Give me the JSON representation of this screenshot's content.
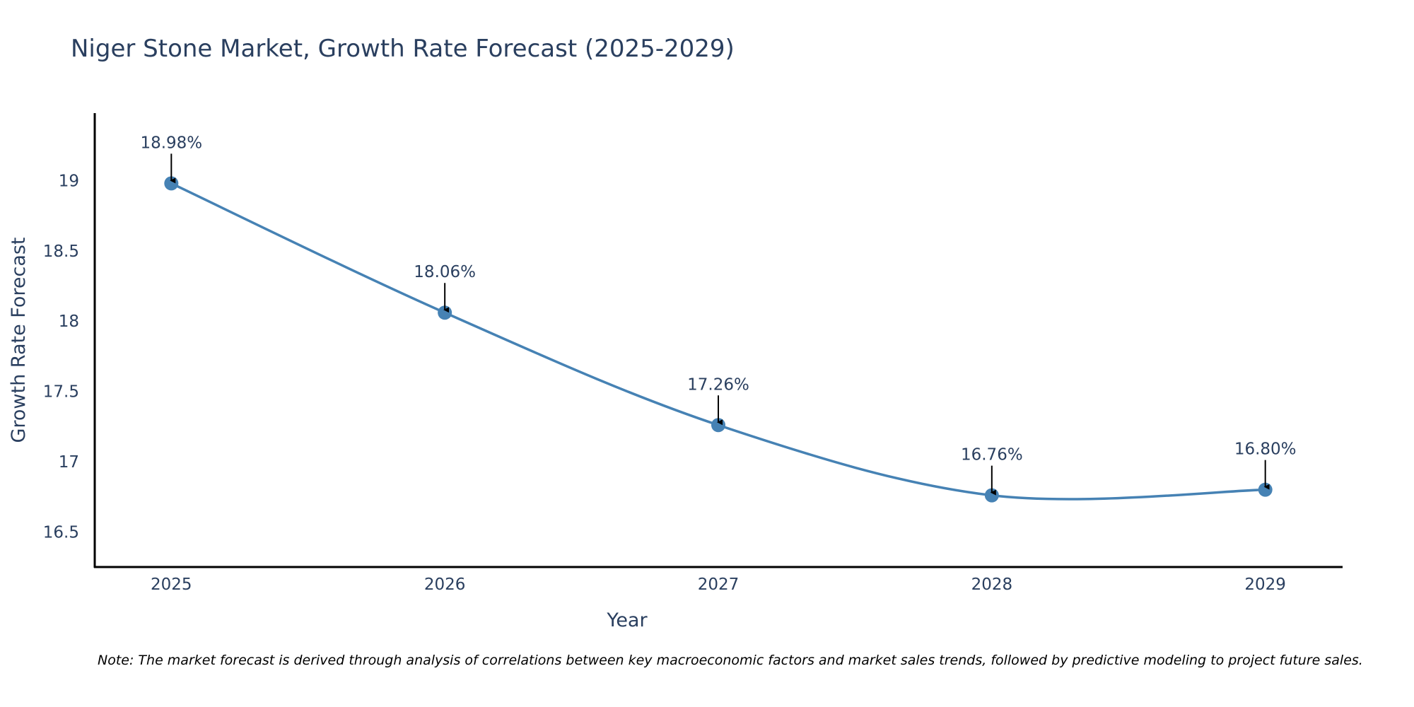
{
  "chart_data": {
    "type": "line",
    "title": "Niger Stone Market, Growth Rate Forecast (2025-2029)",
    "xlabel": "Year",
    "ylabel": "Growth Rate Forecast",
    "x": [
      "2025",
      "2026",
      "2027",
      "2028",
      "2029"
    ],
    "values": [
      18.98,
      18.06,
      17.26,
      16.76,
      16.8
    ],
    "data_labels": [
      "18.98%",
      "18.06%",
      "17.26%",
      "16.76%",
      "16.80%"
    ],
    "y_ticks": [
      16.5,
      17,
      17.5,
      18,
      18.5,
      19
    ],
    "y_tick_labels": [
      "16.5",
      "17",
      "17.5",
      "18",
      "18.5",
      "19"
    ],
    "ylim": [
      16.25,
      19.48
    ],
    "xlim": [
      2024.72,
      2029.28
    ],
    "grid": false,
    "legend": "none",
    "line_shape": "spline",
    "colors": {
      "line": "#4682b4",
      "marker": "#4682b4",
      "axis": "#000000",
      "text": "#2a3f5f",
      "arrow": "#000000"
    },
    "note": "Note: The market forecast is derived through analysis of correlations between key macroeconomic factors and market sales trends, followed by predictive modeling to project future sales."
  }
}
